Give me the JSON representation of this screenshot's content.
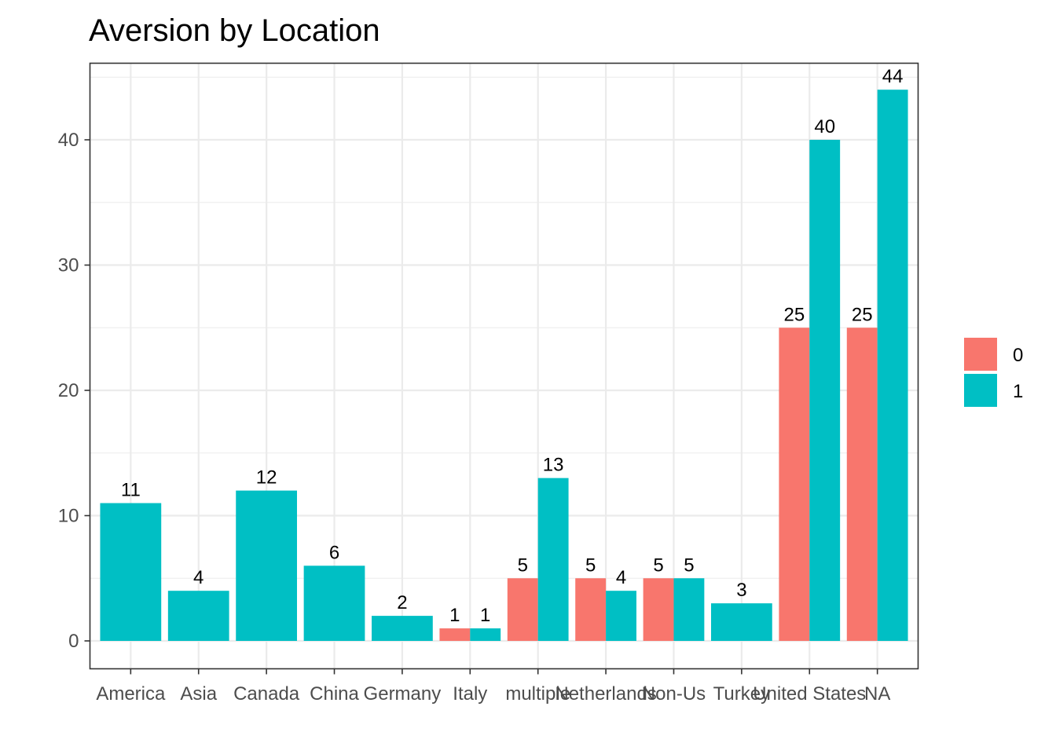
{
  "chart_data": {
    "type": "bar",
    "title": "Aversion by Location",
    "xlabel": "",
    "ylabel": "",
    "ylim": [
      0,
      46
    ],
    "y_ticks": [
      0,
      10,
      20,
      30,
      40
    ],
    "grid": true,
    "legend_position": "right",
    "categories": [
      "America",
      "Asia",
      "Canada",
      "China",
      "Germany",
      "Italy",
      "multiple",
      "Netherlands",
      "Non-Us",
      "Turkey",
      "United States",
      "NA"
    ],
    "series": [
      {
        "name": "0",
        "color": "#F8766D",
        "values": [
          null,
          null,
          null,
          null,
          null,
          1,
          5,
          5,
          5,
          null,
          25,
          25
        ]
      },
      {
        "name": "1",
        "color": "#00BFC4",
        "values": [
          11,
          4,
          12,
          6,
          2,
          1,
          13,
          4,
          5,
          3,
          40,
          44
        ]
      }
    ]
  }
}
